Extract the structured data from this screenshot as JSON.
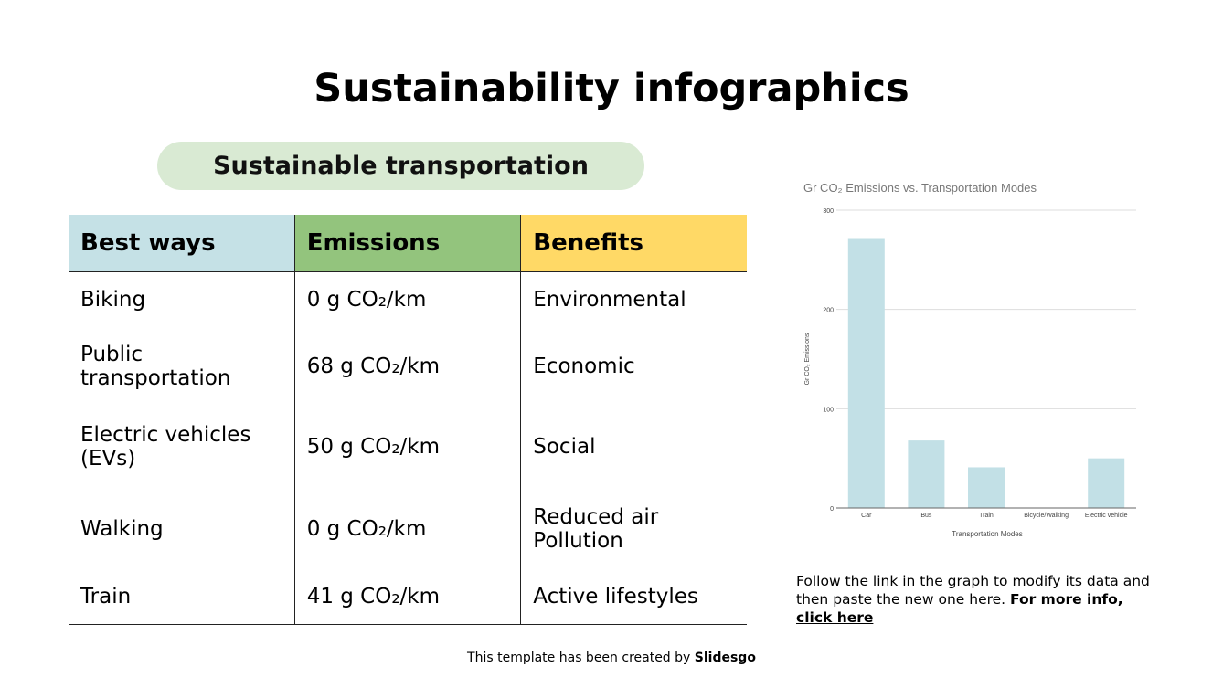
{
  "title": "Sustainability infographics",
  "subtitle": "Sustainable transportation",
  "table": {
    "headers": [
      "Best ways",
      "Emissions",
      "Benefits"
    ],
    "header_colors": [
      "#c5e1e6",
      "#93c47d",
      "#ffd966"
    ],
    "rows": [
      [
        "Biking",
        "0 g CO₂/km",
        "Environmental"
      ],
      [
        "Public transportation",
        "68 g CO₂/km",
        "Economic"
      ],
      [
        "Electric vehicles (EVs)",
        "50 g CO₂/km",
        "Social"
      ],
      [
        "Walking",
        "0 g CO₂/km",
        "Reduced air Pollution"
      ],
      [
        "Train",
        "41 g CO₂/km",
        "Active lifestyles"
      ]
    ]
  },
  "chart_data": {
    "type": "bar",
    "title": "Gr CO₂ Emissions vs. Transportation Modes",
    "xlabel": "Transportation Modes",
    "ylabel": "Gr CO₂ Emissions",
    "categories": [
      "Car",
      "Bus",
      "Train",
      "Bicycle/Walking",
      "Electric vehicle"
    ],
    "values": [
      271,
      68,
      41,
      0,
      50
    ],
    "ylim": [
      0,
      300
    ],
    "yticks": [
      0,
      100,
      200,
      300
    ],
    "grid": true,
    "bar_color": "#c2e0e6"
  },
  "note": {
    "text": "Follow the link in the graph to modify its data and then paste the new one here. ",
    "bold": "For more info, ",
    "link": "click here"
  },
  "credit": {
    "text": "This template has been created by ",
    "brand": "Slidesgo"
  }
}
